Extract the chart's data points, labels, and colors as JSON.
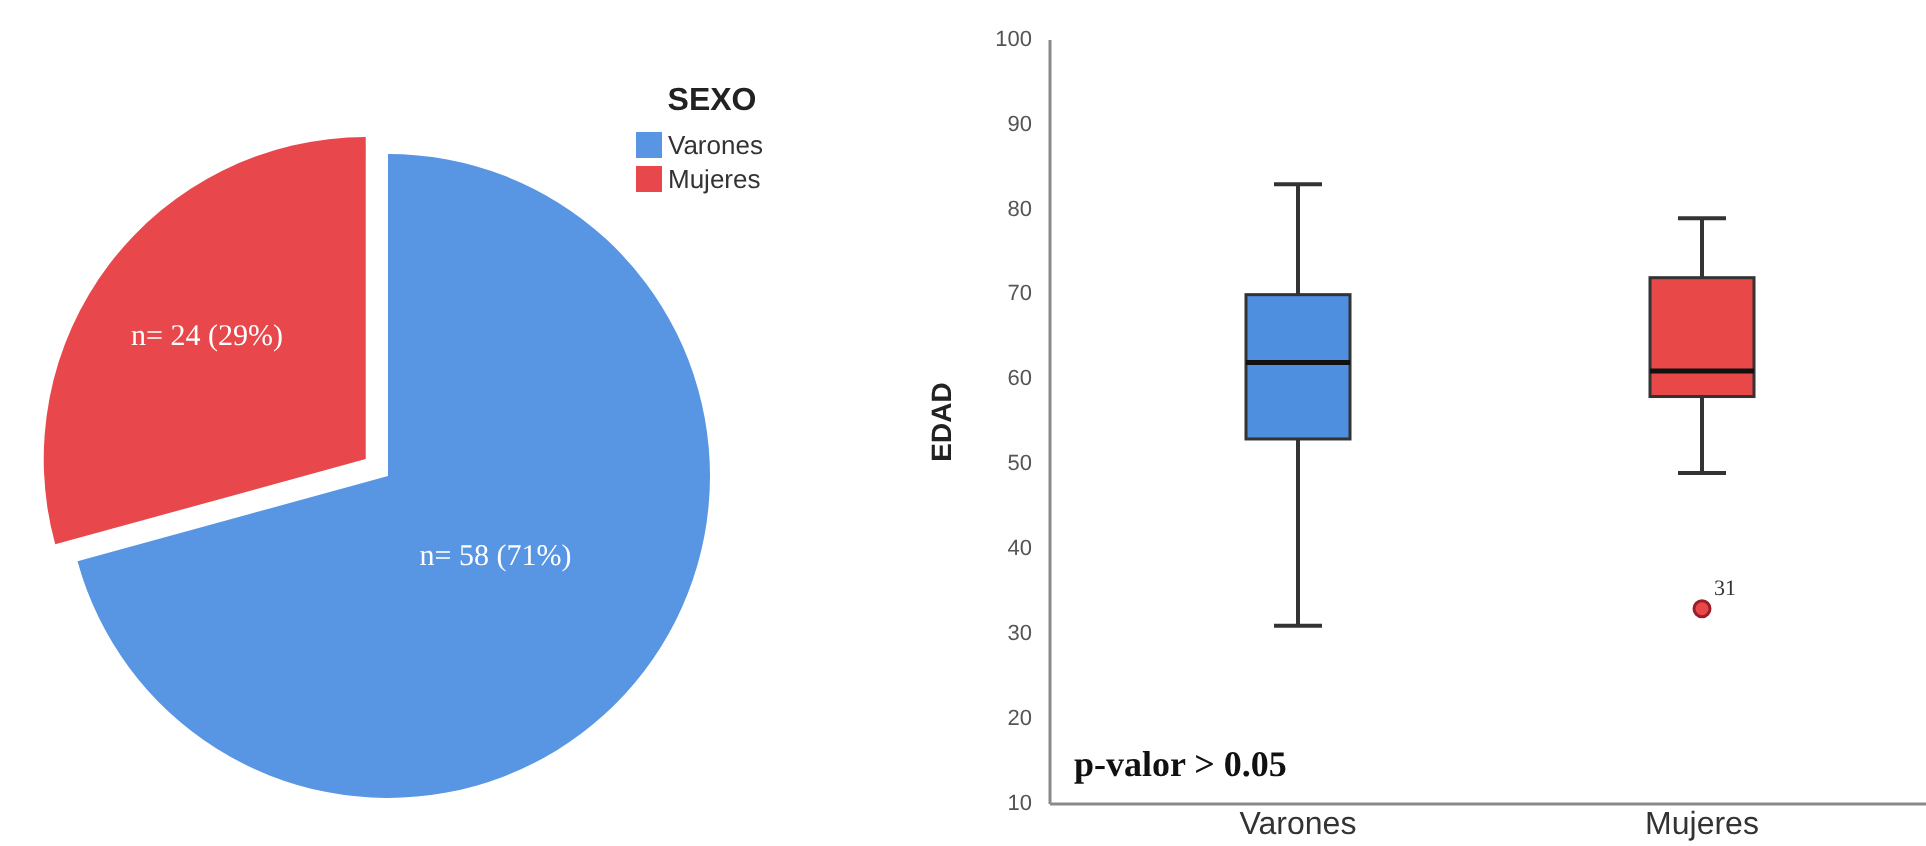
{
  "chart_data": [
    {
      "type": "pie",
      "categories": [
        "Varones",
        "Mujeres"
      ],
      "values": [
        58,
        24
      ],
      "colors": [
        "#5896e3",
        "#e8484b"
      ],
      "value_labels": [
        "n= 58 (71%)",
        "n= 24 (29%)"
      ],
      "legend_title": "SEXO",
      "legend": "top right"
    },
    {
      "type": "box",
      "categories": [
        "Varones",
        "Mujeres"
      ],
      "colors": [
        "#4f8fe0",
        "#e84848"
      ],
      "boxes": [
        {
          "low": 31,
          "q1": 53,
          "median": 62,
          "q3": 70,
          "high": 83
        },
        {
          "low": 49,
          "q1": 58,
          "median": 61,
          "q3": 72,
          "high": 79,
          "outliers": [
            33
          ]
        }
      ],
      "ylabel": "EDAD",
      "ylim": [
        10,
        100
      ],
      "yticks": [
        10,
        20,
        30,
        40,
        50,
        60,
        70,
        80,
        90,
        100
      ],
      "annotations": [
        "p-valor > 0.05",
        "31"
      ]
    }
  ]
}
